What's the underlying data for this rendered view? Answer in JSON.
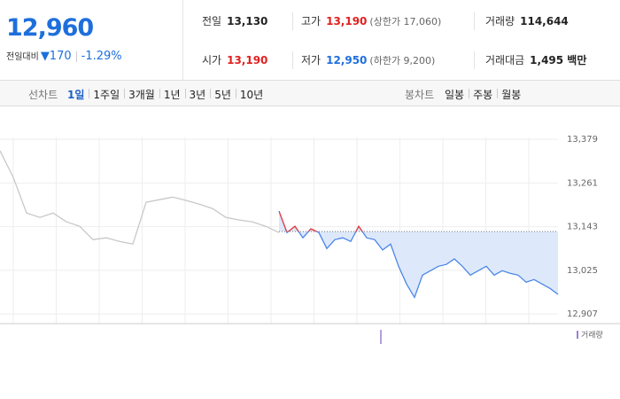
{
  "quote": {
    "price": "12,960",
    "change_label": "전일대비",
    "change": "▼170",
    "rate": "-1.29%"
  },
  "summary": [
    [
      {
        "label": "전일",
        "value": "13,130",
        "tone": "plain"
      },
      {
        "label": "고가",
        "value": "13,190",
        "note": "(상한가 17,060)",
        "tone": "up"
      },
      {
        "label": "거래량",
        "value": "114,644",
        "tone": "plain"
      }
    ],
    [
      {
        "label": "시가",
        "value": "13,190",
        "tone": "up"
      },
      {
        "label": "저가",
        "value": "12,950",
        "note": "(하한가 9,200)",
        "tone": "down"
      },
      {
        "label": "거래대금",
        "value": "1,495 백만",
        "tone": "plain"
      }
    ]
  ],
  "tabs": {
    "line_label": "선차트",
    "periods": [
      "1일",
      "1주일",
      "3개월",
      "1년",
      "3년",
      "5년",
      "10년"
    ],
    "active": 0,
    "candle_label": "봉차트",
    "candles": [
      "일봉",
      "주봉",
      "월봉"
    ]
  },
  "chart_data": {
    "type": "line",
    "ylim": [
      12881,
      13456
    ],
    "yticks": [
      {
        "value": 13379,
        "label": "13,379"
      },
      {
        "value": 13261,
        "label": "13,261"
      },
      {
        "value": 13143,
        "label": "13,143"
      },
      {
        "value": 13025,
        "label": "13,025"
      },
      {
        "value": 12907,
        "label": "12,907"
      }
    ],
    "reference": 13130,
    "above_color": "#f04040",
    "area_color": "#dde9fb",
    "grid": true,
    "series": [
      {
        "color": "#c8c8c8",
        "values": [
          13348,
          13276,
          13180,
          13168,
          13180,
          13156,
          13144,
          13108,
          13113,
          13103,
          13096,
          13209,
          13216,
          13223,
          13214,
          13204,
          13192,
          13168,
          13161,
          13156,
          13144,
          13127
        ]
      },
      {
        "color": "#4a86e8",
        "values": [
          13185,
          13127,
          13144,
          13113,
          13137,
          13127,
          13084,
          13108,
          13113,
          13103,
          13144,
          13113,
          13108,
          13080,
          13096,
          13036,
          12988,
          12952,
          13012,
          13024,
          13036,
          13041,
          13056,
          13036,
          13012,
          13024,
          13036,
          13012,
          13024,
          13017,
          13012,
          12993,
          13000,
          12988,
          12976,
          12960
        ]
      }
    ],
    "legend": "거래량",
    "legend_color": "#9b7fd1"
  }
}
